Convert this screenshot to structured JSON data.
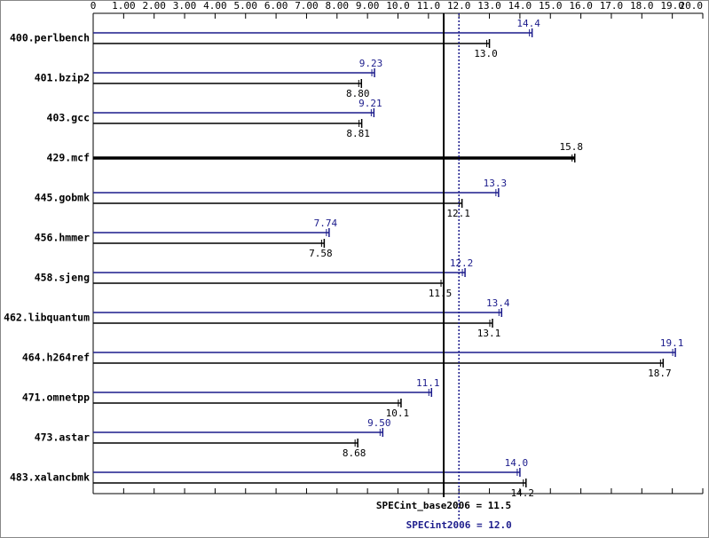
{
  "chart_data": {
    "type": "bar",
    "orientation": "horizontal",
    "categories": [
      "400.perlbench",
      "401.bzip2",
      "403.gcc",
      "429.mcf",
      "445.gobmk",
      "456.hmmer",
      "458.sjeng",
      "462.libquantum",
      "464.h264ref",
      "471.omnetpp",
      "473.astar",
      "483.xalancbmk"
    ],
    "series": [
      {
        "color": "#1c1c8c",
        "values": [
          14.4,
          9.23,
          9.21,
          null,
          13.3,
          7.74,
          12.2,
          13.4,
          19.1,
          11.1,
          9.5,
          14.0
        ],
        "value_labels": [
          "14.4",
          "9.23",
          "9.21",
          null,
          "13.3",
          "7.74",
          "12.2",
          "13.4",
          "19.1",
          "11.1",
          "9.50",
          "14.0"
        ]
      },
      {
        "color": "#000000",
        "values": [
          13.0,
          8.8,
          8.81,
          15.8,
          12.1,
          7.58,
          11.5,
          13.1,
          18.7,
          10.1,
          8.68,
          14.2
        ],
        "value_labels": [
          "13.0",
          "8.80",
          "8.81",
          "15.8",
          "12.1",
          "7.58",
          "11.5",
          "13.1",
          "18.7",
          "10.1",
          "8.68",
          "14.2"
        ]
      }
    ],
    "xlim": [
      0,
      20
    ],
    "xticks": [
      0,
      {
        "value": 1,
        "label": "1.00"
      },
      {
        "value": 2,
        "label": "2.00"
      },
      {
        "value": 3,
        "label": "3.00"
      },
      {
        "value": 4,
        "label": "4.00"
      },
      {
        "value": 5,
        "label": "5.00"
      },
      {
        "value": 6,
        "label": "6.00"
      },
      {
        "value": 7,
        "label": "7.00"
      },
      {
        "value": 8,
        "label": "8.00"
      },
      {
        "value": 9,
        "label": "9.00"
      },
      {
        "value": 10,
        "label": "10.0"
      },
      {
        "value": 11,
        "label": "11.0"
      },
      {
        "value": 12,
        "label": "12.0"
      },
      {
        "value": 13,
        "label": "13.0"
      },
      {
        "value": 14,
        "label": "14.0"
      },
      {
        "value": 15,
        "label": "15.0"
      },
      {
        "value": 16,
        "label": "16.0"
      },
      {
        "value": 17,
        "label": "17.0"
      },
      {
        "value": 18,
        "label": "18.0"
      },
      {
        "value": 19,
        "label": "19.0"
      },
      {
        "value": 20,
        "label": "20.0"
      }
    ],
    "reference_lines": [
      {
        "label": "SPECint_base2006 = 11.5",
        "value": 11.5,
        "color": "#000000",
        "style": "solid"
      },
      {
        "label": "SPECint2006 = 12.0",
        "value": 12.0,
        "color": "#1c1c8c",
        "style": "dotted"
      }
    ]
  }
}
